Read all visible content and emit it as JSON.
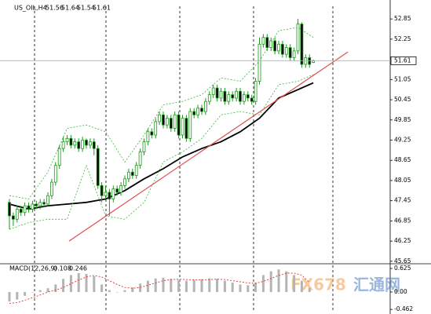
{
  "chart_data": {
    "type": "candlestick",
    "symbol": "US_OIL,H4",
    "ylim": [
      45.6,
      53.18
    ],
    "yticks": [
      52.85,
      52.25,
      51.05,
      50.45,
      49.85,
      49.25,
      48.65,
      48.05,
      47.45,
      46.85,
      46.25,
      45.65
    ],
    "up_color": "#1a9a1a",
    "down_color": "#1a9a1a",
    "candles": [
      [
        47.4,
        47.5,
        46.6,
        47.0
      ],
      [
        47.0,
        47.1,
        46.7,
        46.9
      ],
      [
        46.9,
        47.3,
        46.8,
        47.2
      ],
      [
        47.2,
        47.3,
        47.0,
        47.1
      ],
      [
        47.1,
        47.4,
        47.0,
        47.3
      ],
      [
        47.3,
        47.4,
        47.1,
        47.2
      ],
      [
        47.2,
        47.45,
        47.1,
        47.35
      ],
      [
        47.35,
        47.45,
        47.2,
        47.3
      ],
      [
        47.3,
        47.5,
        47.2,
        47.4
      ],
      [
        47.4,
        47.5,
        47.25,
        47.35
      ],
      [
        47.35,
        47.7,
        47.3,
        47.6
      ],
      [
        47.6,
        48.1,
        47.5,
        48.0
      ],
      [
        48.0,
        48.6,
        47.9,
        48.5
      ],
      [
        48.5,
        49.1,
        48.4,
        49.0
      ],
      [
        49.0,
        49.35,
        48.9,
        49.2
      ],
      [
        49.2,
        49.4,
        49.1,
        49.3
      ],
      [
        49.3,
        49.4,
        49.0,
        49.1
      ],
      [
        49.1,
        49.3,
        49.0,
        49.2
      ],
      [
        49.2,
        49.3,
        48.9,
        49.0
      ],
      [
        49.0,
        49.35,
        48.9,
        49.25
      ],
      [
        49.25,
        49.3,
        49.0,
        49.1
      ],
      [
        49.1,
        49.3,
        49.0,
        49.2
      ],
      [
        49.2,
        49.3,
        48.8,
        49.0
      ],
      [
        49.0,
        49.1,
        47.8,
        47.9
      ],
      [
        47.9,
        48.0,
        47.4,
        47.6
      ],
      [
        47.6,
        47.9,
        47.5,
        47.7
      ],
      [
        47.7,
        47.8,
        47.0,
        47.5
      ],
      [
        47.5,
        47.9,
        47.4,
        47.8
      ],
      [
        47.8,
        47.9,
        47.6,
        47.7
      ],
      [
        47.7,
        48.0,
        47.6,
        47.9
      ],
      [
        47.9,
        48.2,
        47.8,
        48.1
      ],
      [
        48.1,
        48.4,
        48.0,
        48.3
      ],
      [
        48.3,
        48.4,
        48.1,
        48.2
      ],
      [
        48.2,
        48.6,
        48.1,
        48.5
      ],
      [
        48.5,
        49.0,
        48.4,
        48.9
      ],
      [
        48.9,
        49.3,
        48.8,
        49.2
      ],
      [
        49.2,
        49.6,
        49.1,
        49.5
      ],
      [
        49.5,
        49.6,
        49.3,
        49.4
      ],
      [
        49.4,
        49.9,
        49.3,
        49.8
      ],
      [
        49.8,
        50.1,
        49.7,
        50.0
      ],
      [
        50.0,
        50.1,
        49.6,
        49.7
      ],
      [
        49.7,
        50.0,
        49.6,
        49.9
      ],
      [
        49.9,
        50.0,
        49.5,
        49.6
      ],
      [
        49.6,
        50.1,
        49.5,
        50.0
      ],
      [
        50.0,
        50.1,
        49.3,
        49.4
      ],
      [
        49.4,
        50.0,
        49.3,
        49.9
      ],
      [
        49.9,
        50.0,
        49.2,
        49.3
      ],
      [
        49.3,
        50.2,
        49.2,
        50.1
      ],
      [
        50.1,
        50.2,
        49.9,
        50.0
      ],
      [
        50.0,
        50.3,
        49.9,
        50.2
      ],
      [
        50.2,
        50.3,
        50.0,
        50.1
      ],
      [
        50.1,
        50.5,
        50.0,
        50.4
      ],
      [
        50.4,
        50.7,
        50.3,
        50.6
      ],
      [
        50.6,
        50.9,
        50.5,
        50.8
      ],
      [
        50.8,
        50.9,
        50.4,
        50.5
      ],
      [
        50.5,
        50.8,
        50.4,
        50.7
      ],
      [
        50.7,
        50.8,
        50.3,
        50.4
      ],
      [
        50.4,
        50.7,
        50.3,
        50.6
      ],
      [
        50.6,
        50.7,
        50.4,
        50.5
      ],
      [
        50.5,
        50.8,
        50.4,
        50.7
      ],
      [
        50.7,
        50.8,
        50.3,
        50.4
      ],
      [
        50.4,
        50.7,
        50.3,
        50.6
      ],
      [
        50.6,
        50.7,
        50.4,
        50.5
      ],
      [
        50.5,
        50.6,
        50.3,
        50.4
      ],
      [
        50.4,
        51.1,
        50.3,
        51.0
      ],
      [
        51.0,
        52.3,
        50.9,
        52.1
      ],
      [
        52.1,
        52.4,
        52.0,
        52.3
      ],
      [
        52.3,
        52.4,
        51.9,
        52.0
      ],
      [
        52.0,
        52.3,
        51.9,
        52.2
      ],
      [
        52.2,
        52.3,
        51.8,
        51.9
      ],
      [
        51.9,
        52.2,
        51.8,
        52.1
      ],
      [
        52.1,
        52.2,
        51.7,
        51.8
      ],
      [
        51.8,
        52.1,
        51.7,
        52.0
      ],
      [
        52.0,
        52.1,
        51.6,
        51.7
      ],
      [
        51.7,
        52.0,
        51.6,
        51.9
      ],
      [
        51.9,
        52.85,
        51.8,
        52.7
      ],
      [
        52.7,
        52.75,
        51.4,
        51.5
      ],
      [
        51.5,
        51.8,
        51.4,
        51.7
      ],
      [
        51.7,
        51.8,
        51.4,
        51.5
      ],
      [
        51.56,
        51.64,
        51.54,
        51.61
      ]
    ],
    "lines": [
      {
        "x": [
          0,
          5,
          10,
          15,
          20,
          25,
          30,
          35,
          40,
          45,
          50,
          55,
          60,
          65,
          70,
          75,
          79
        ],
        "values": [
          47.35,
          47.2,
          47.3,
          47.35,
          47.4,
          47.5,
          47.75,
          48.1,
          48.4,
          48.75,
          49.0,
          49.2,
          49.5,
          49.9,
          50.5,
          50.75,
          50.95
        ],
        "color": "#000000",
        "dashed": false
      },
      {
        "x": [
          0,
          5,
          10,
          15,
          20,
          25,
          30,
          35,
          40,
          45,
          50,
          55,
          60,
          65,
          70,
          75,
          79
        ],
        "values": [
          47.6,
          47.5,
          48.3,
          49.6,
          49.7,
          49.5,
          48.6,
          49.4,
          50.3,
          50.4,
          50.6,
          51.1,
          51.0,
          51.6,
          52.5,
          52.6,
          52.3
        ],
        "color": "#3cb43c",
        "dashed": true
      },
      {
        "x": [
          0,
          5,
          10,
          15,
          20,
          25,
          30,
          35,
          40,
          45,
          50,
          55,
          60,
          65,
          70,
          75,
          79
        ],
        "values": [
          46.6,
          46.8,
          46.9,
          46.9,
          48.5,
          47.0,
          46.9,
          47.4,
          48.6,
          48.9,
          49.3,
          50.0,
          50.1,
          50.0,
          50.9,
          51.0,
          51.2
        ],
        "color": "#3cb43c",
        "dashed": true
      }
    ],
    "trendline": {
      "x": [
        15.5,
        88
      ],
      "values": [
        46.25,
        51.87
      ],
      "color": "#e05050"
    },
    "macd": {
      "label": "MACD(12,26,9)",
      "ylim": [
        -0.542,
        0.729
      ],
      "yticks": [
        0.625,
        {
          "value": 0,
          "label": "0.00"
        },
        -0.462
      ],
      "x": [
        0,
        2,
        4,
        6,
        8,
        10,
        12,
        14,
        16,
        18,
        20,
        22,
        24,
        26,
        28,
        30,
        32,
        34,
        36,
        38,
        40,
        42,
        44,
        46,
        48,
        50,
        52,
        54,
        56,
        58,
        60,
        62,
        64,
        66,
        68,
        70,
        72,
        74,
        76,
        78
      ],
      "histogram": [
        -0.25,
        -0.2,
        -0.1,
        0.0,
        0.05,
        0.1,
        0.2,
        0.35,
        0.45,
        0.5,
        0.48,
        0.42,
        0.2,
        0.05,
        0.0,
        0.05,
        0.12,
        0.22,
        0.3,
        0.36,
        0.38,
        0.35,
        0.32,
        0.3,
        0.32,
        0.34,
        0.36,
        0.35,
        0.3,
        0.25,
        0.2,
        0.18,
        0.25,
        0.45,
        0.55,
        0.6,
        0.55,
        0.45,
        0.3,
        0.108
      ],
      "signal": [
        -0.3,
        -0.28,
        -0.22,
        -0.15,
        -0.08,
        0.0,
        0.05,
        0.12,
        0.22,
        0.32,
        0.4,
        0.44,
        0.4,
        0.3,
        0.2,
        0.12,
        0.1,
        0.12,
        0.18,
        0.24,
        0.3,
        0.33,
        0.34,
        0.33,
        0.32,
        0.32,
        0.33,
        0.34,
        0.33,
        0.3,
        0.27,
        0.24,
        0.23,
        0.28,
        0.36,
        0.44,
        0.5,
        0.5,
        0.45,
        0.246
      ],
      "histogram_color": "#b4b4b4",
      "signal_color": "#e03030"
    },
    "watermark": [
      "FX678",
      "汇通网"
    ]
  }
}
